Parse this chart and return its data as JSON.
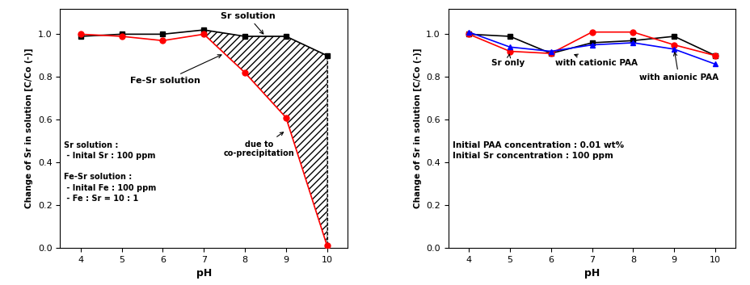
{
  "left": {
    "sr_x": [
      4,
      5,
      6,
      7,
      8,
      9,
      10
    ],
    "sr_y": [
      0.99,
      1.0,
      1.0,
      1.02,
      0.99,
      0.99,
      0.9
    ],
    "fesr_x": [
      4,
      5,
      6,
      7,
      8,
      9,
      10
    ],
    "fesr_y": [
      1.0,
      0.99,
      0.97,
      1.0,
      0.82,
      0.61,
      0.01
    ],
    "sr_color": "black",
    "fesr_color": "red",
    "ylabel": "Change of Sr in solution [C/Co (-)]",
    "xlabel": "pH",
    "ylim": [
      0.0,
      1.12
    ],
    "xlim": [
      3.5,
      10.5
    ],
    "yticks": [
      0.0,
      0.2,
      0.4,
      0.6,
      0.8,
      1.0
    ],
    "xticks": [
      4,
      5,
      6,
      7,
      8,
      9,
      10
    ]
  },
  "right": {
    "sr_x": [
      4,
      5,
      6,
      7,
      8,
      9,
      10
    ],
    "sr_y": [
      1.0,
      0.92,
      0.91,
      1.01,
      1.01,
      0.95,
      0.9
    ],
    "cat_x": [
      4,
      5,
      6,
      7,
      8,
      9,
      10
    ],
    "cat_y": [
      1.0,
      0.99,
      0.91,
      0.96,
      0.97,
      0.99,
      0.9
    ],
    "ani_x": [
      4,
      5,
      6,
      7,
      8,
      9,
      10
    ],
    "ani_y": [
      1.01,
      0.94,
      0.92,
      0.95,
      0.96,
      0.93,
      0.86
    ],
    "sr_color": "red",
    "cat_color": "black",
    "ani_color": "blue",
    "ylabel": "Change of Sr in solution [C/Co (-)]",
    "xlabel": "pH",
    "ylim": [
      0.0,
      1.12
    ],
    "xlim": [
      3.5,
      10.5
    ],
    "yticks": [
      0.0,
      0.2,
      0.4,
      0.6,
      0.8,
      1.0
    ],
    "xticks": [
      4,
      5,
      6,
      7,
      8,
      9,
      10
    ]
  }
}
